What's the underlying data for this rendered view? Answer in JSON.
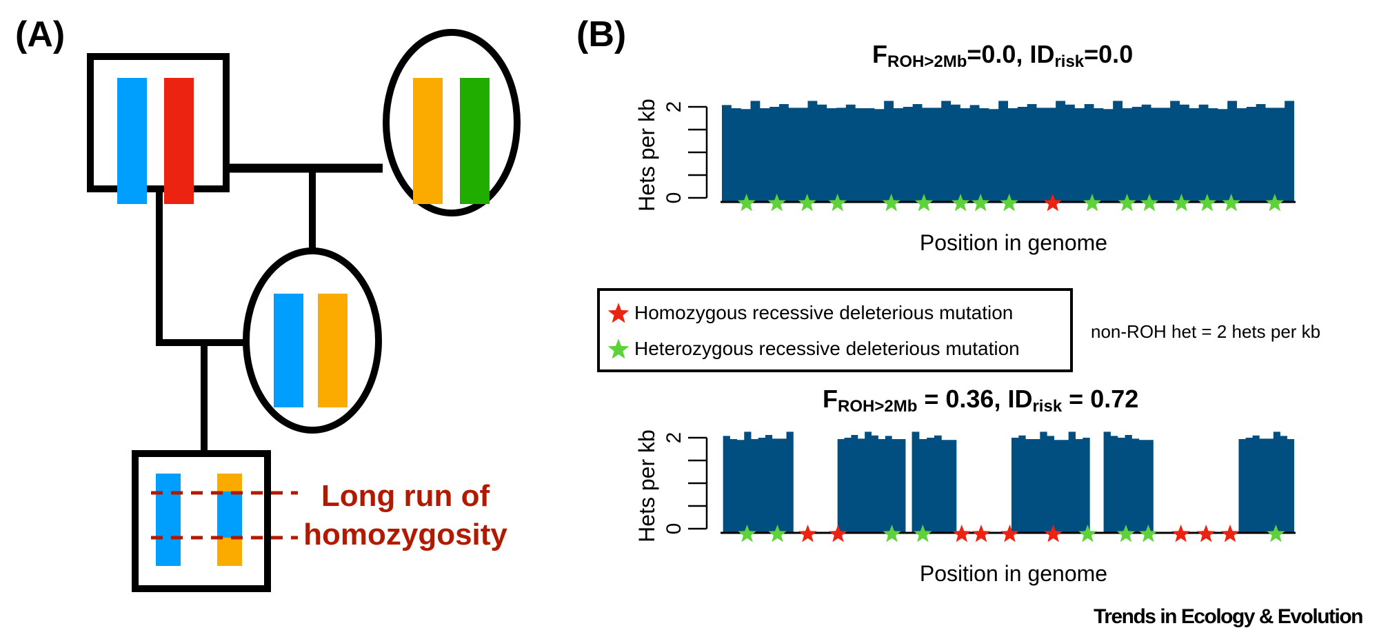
{
  "panel_a": {
    "label": "(A)",
    "pedigree": {
      "father": {
        "sex": "male",
        "chromosomes": [
          "#009ffd",
          "#ec2310"
        ]
      },
      "mother": {
        "sex": "female",
        "chromosomes": [
          "#fbab00",
          "#20ad00"
        ]
      },
      "daughter": {
        "sex": "female",
        "chromosomes": [
          "#009ffd",
          "#fbab00"
        ]
      },
      "offspring": {
        "sex": "male",
        "chromosomes": [
          "#009ffd",
          "#fbab00"
        ],
        "roh_segment_color": "#009ffd"
      }
    },
    "roh_annotation": [
      "Long run of",
      "homozygosity"
    ],
    "roh_color": "#b21a00"
  },
  "panel_b": {
    "label": "(B)",
    "legend": {
      "items": [
        {
          "label": "Homozygous recessive deleterious mutation",
          "color": "#ec2310",
          "icon": "star-icon"
        },
        {
          "label": "Heterozygous recessive deleterious mutation",
          "color": "#5fd13a",
          "icon": "star-icon"
        }
      ]
    },
    "note": "non-ROH het = 2 hets per kb"
  },
  "colors": {
    "bar": "#004f80",
    "hom_star": "#ec2310",
    "het_star": "#5fd13a"
  },
  "footer": "Trends in Ecology & Evolution",
  "chart_data": [
    {
      "type": "bar",
      "title_parts": {
        "f": "F",
        "f_sub": "ROH>2Mb",
        "f_val": "=0.0, ",
        "id": "ID",
        "id_sub": "risk",
        "id_val": "=0.0"
      },
      "xlabel": "Position in genome",
      "ylabel": "Hets per kb",
      "ylim": [
        0,
        2
      ],
      "yticks": [
        0,
        0.5,
        1,
        1.5,
        2
      ],
      "ytick_labels": [
        "0",
        "",
        "",
        "",
        "2"
      ],
      "xlim": [
        0,
        100
      ],
      "segments": [
        {
          "start": 0,
          "end": 100,
          "values": [
            2.04,
            1.97,
            1.95,
            2.13,
            1.97,
            2.0,
            2.06,
            1.98,
            1.98,
            2.13,
            2.05,
            1.97,
            1.98,
            2.05,
            1.97,
            1.97,
            1.95,
            2.13,
            1.97,
            2.0,
            2.06,
            1.98,
            1.98,
            2.13,
            2.05,
            1.97,
            2.04,
            1.97,
            1.95,
            2.13,
            1.97,
            2.0,
            2.06,
            1.98,
            1.98,
            2.13,
            2.05,
            1.97,
            2.06,
            1.97,
            1.95,
            2.13,
            1.97,
            2.0,
            2.05,
            1.98,
            1.98,
            2.13,
            2.05,
            1.97,
            2.05,
            1.97,
            1.95,
            2.13,
            1.97,
            2.0,
            2.06,
            1.98,
            1.98,
            2.13
          ]
        }
      ],
      "mutations": [
        {
          "pos": 4.3,
          "type": "het"
        },
        {
          "pos": 9.6,
          "type": "het"
        },
        {
          "pos": 14.9,
          "type": "het"
        },
        {
          "pos": 20.2,
          "type": "het"
        },
        {
          "pos": 29.6,
          "type": "het"
        },
        {
          "pos": 35.3,
          "type": "het"
        },
        {
          "pos": 41.7,
          "type": "het"
        },
        {
          "pos": 45.2,
          "type": "het"
        },
        {
          "pos": 50.2,
          "type": "het"
        },
        {
          "pos": 57.8,
          "type": "hom"
        },
        {
          "pos": 64.7,
          "type": "het"
        },
        {
          "pos": 70.8,
          "type": "het"
        },
        {
          "pos": 74.7,
          "type": "het"
        },
        {
          "pos": 80.3,
          "type": "het"
        },
        {
          "pos": 84.8,
          "type": "het"
        },
        {
          "pos": 89.0,
          "type": "het"
        },
        {
          "pos": 96.6,
          "type": "het"
        }
      ]
    },
    {
      "type": "bar",
      "title_parts": {
        "f": "F",
        "f_sub": "ROH>2Mb",
        "f_val": " = 0.36, ",
        "id": "ID",
        "id_sub": "risk",
        "id_val": " = 0.72"
      },
      "xlabel": "Position in genome",
      "ylabel": "Hets per kb",
      "ylim": [
        0,
        2
      ],
      "yticks": [
        0,
        0.5,
        1,
        1.5,
        2
      ],
      "ytick_labels": [
        "0",
        "",
        "",
        "",
        "2"
      ],
      "xlim": [
        0,
        100
      ],
      "segments": [
        {
          "start": 0.2,
          "end": 12.5,
          "values": [
            2.04,
            1.97,
            1.95,
            2.13,
            1.97,
            2.0,
            2.06,
            1.98,
            1.98,
            2.13
          ]
        },
        {
          "start": 20.2,
          "end": 32.1,
          "values": [
            1.97,
            2.0,
            2.06,
            1.98,
            2.13,
            2.05,
            1.97,
            2.04,
            1.97,
            1.97
          ]
        },
        {
          "start": 33.2,
          "end": 41.0,
          "values": [
            2.13,
            1.97,
            2.0,
            2.05,
            1.95,
            1.95
          ]
        },
        {
          "start": 50.6,
          "end": 64.3,
          "values": [
            2.0,
            2.05,
            1.97,
            1.97,
            2.13,
            2.04,
            1.95,
            1.95,
            2.13,
            1.97,
            2.0
          ]
        },
        {
          "start": 66.7,
          "end": 75.4,
          "values": [
            2.13,
            2.04,
            2.0,
            2.06,
            1.98,
            1.95,
            1.95
          ]
        },
        {
          "start": 90.3,
          "end": 100,
          "values": [
            1.97,
            2.0,
            2.05,
            1.98,
            1.98,
            2.13,
            2.04,
            1.97
          ]
        }
      ],
      "mutations": [
        {
          "pos": 4.4,
          "type": "het"
        },
        {
          "pos": 9.7,
          "type": "het"
        },
        {
          "pos": 15.0,
          "type": "hom"
        },
        {
          "pos": 20.3,
          "type": "hom"
        },
        {
          "pos": 29.7,
          "type": "het"
        },
        {
          "pos": 35.1,
          "type": "het"
        },
        {
          "pos": 41.9,
          "type": "hom"
        },
        {
          "pos": 45.3,
          "type": "hom"
        },
        {
          "pos": 50.3,
          "type": "hom"
        },
        {
          "pos": 57.9,
          "type": "hom"
        },
        {
          "pos": 63.9,
          "type": "het"
        },
        {
          "pos": 70.6,
          "type": "het"
        },
        {
          "pos": 74.5,
          "type": "het"
        },
        {
          "pos": 80.2,
          "type": "hom"
        },
        {
          "pos": 84.6,
          "type": "hom"
        },
        {
          "pos": 88.8,
          "type": "hom"
        },
        {
          "pos": 96.8,
          "type": "het"
        }
      ]
    }
  ]
}
